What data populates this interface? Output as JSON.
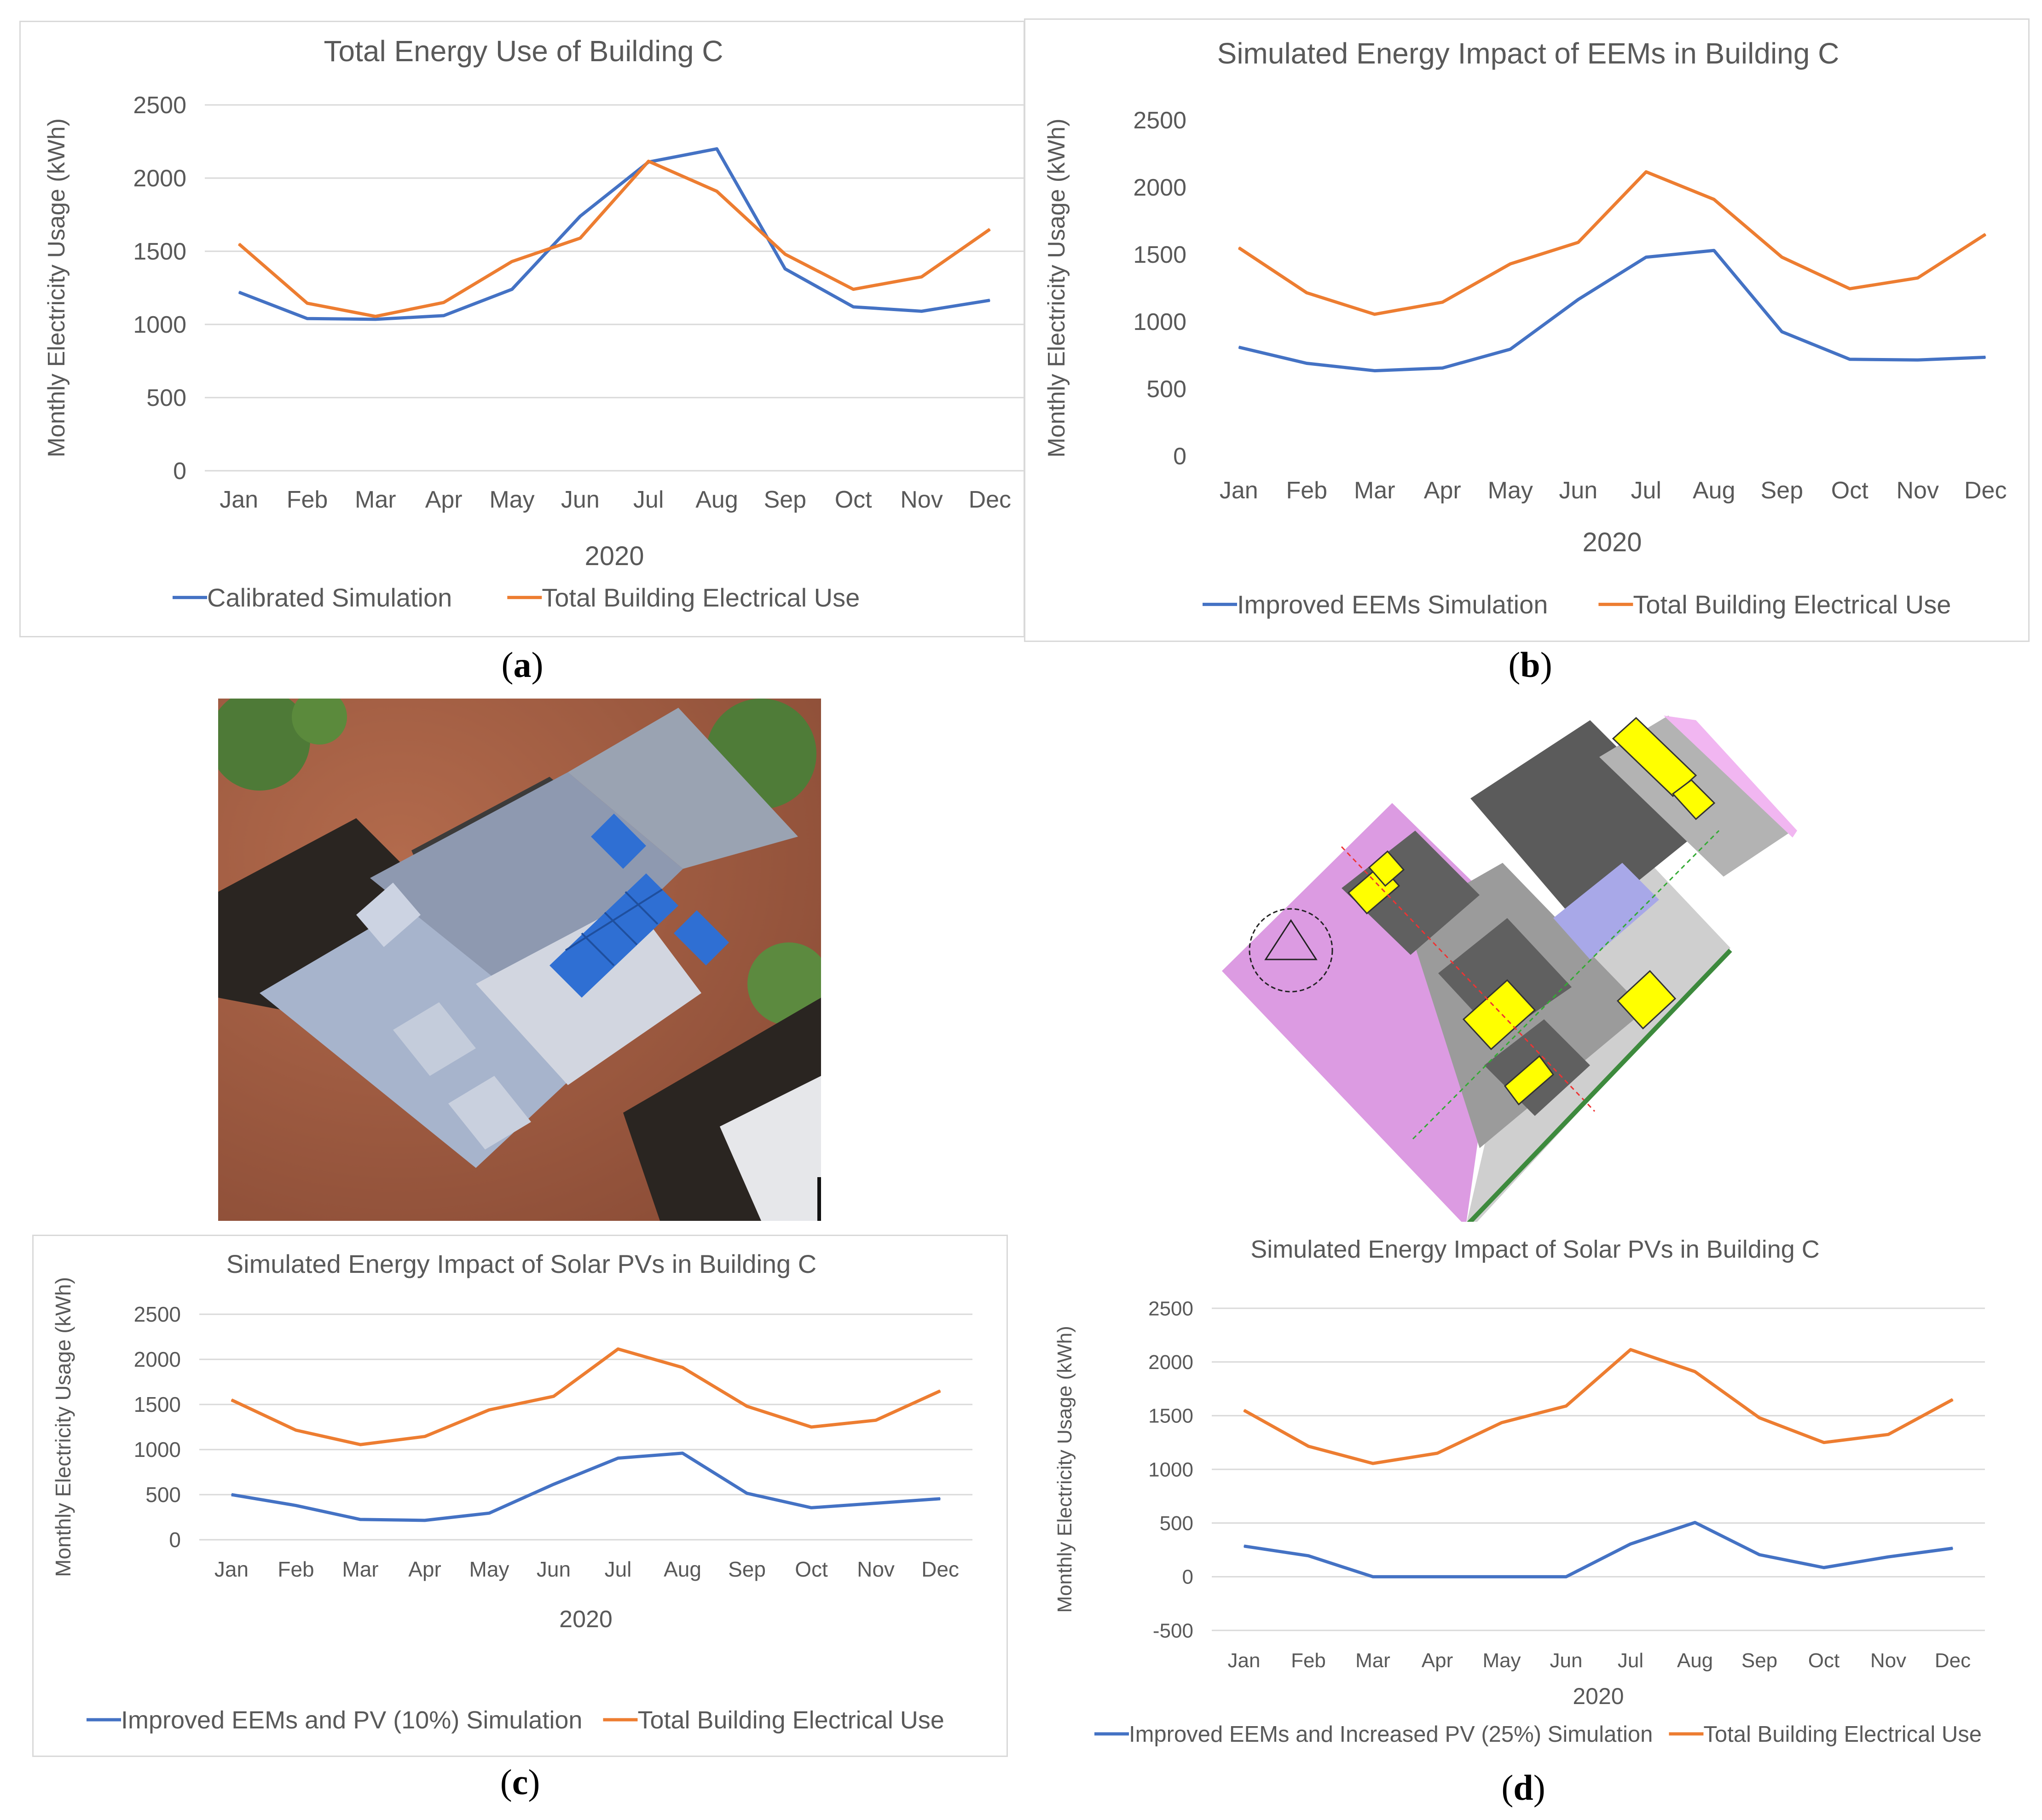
{
  "captions": {
    "a": "a",
    "b": "b",
    "c": "c",
    "d": "d"
  },
  "chart_data": [
    {
      "id": "a",
      "type": "line",
      "title": "Total Energy Use of Building C",
      "xlabel": "2020",
      "ylabel": "Monthly Electricity Usage (kWh)",
      "categories": [
        "Jan",
        "Feb",
        "Mar",
        "Apr",
        "May",
        "Jun",
        "Jul",
        "Aug",
        "Sep",
        "Oct",
        "Nov",
        "Dec"
      ],
      "yticks": [
        0,
        500,
        1000,
        1500,
        2000,
        2500
      ],
      "ylim": [
        0,
        2500
      ],
      "grid": true,
      "legend_position": "bottom",
      "series": [
        {
          "name": "Calibrated Simulation",
          "color": "#4472c4",
          "values": [
            1220,
            1040,
            1035,
            1060,
            1240,
            1740,
            2110,
            2200,
            1380,
            1120,
            1090,
            1165
          ]
        },
        {
          "name": "Total Building Electrical Use",
          "color": "#ed7d31",
          "values": [
            1550,
            1145,
            1055,
            1150,
            1430,
            1590,
            2115,
            1910,
            1480,
            1240,
            1325,
            1650
          ]
        }
      ]
    },
    {
      "id": "b",
      "type": "line",
      "title": "Simulated Energy Impact of EEMs in Building C",
      "xlabel": "2020",
      "ylabel": "Monthly Electricity Usage (kWh)",
      "categories": [
        "Jan",
        "Feb",
        "Mar",
        "Apr",
        "May",
        "Jun",
        "Jul",
        "Aug",
        "Sep",
        "Oct",
        "Nov",
        "Dec"
      ],
      "yticks": [
        0,
        500,
        1000,
        1500,
        2000,
        2500
      ],
      "ylim": [
        0,
        2500
      ],
      "grid": false,
      "legend_position": "bottom",
      "series": [
        {
          "name": "Improved EEMs Simulation",
          "color": "#4472c4",
          "values": [
            810,
            690,
            635,
            655,
            795,
            1165,
            1480,
            1530,
            925,
            720,
            715,
            735
          ]
        },
        {
          "name": "Total Building Electrical Use",
          "color": "#ed7d31",
          "values": [
            1550,
            1215,
            1055,
            1145,
            1430,
            1590,
            2115,
            1910,
            1480,
            1245,
            1325,
            1650
          ]
        }
      ]
    },
    {
      "id": "c",
      "type": "line",
      "title": "Simulated Energy Impact of Solar PVs in Building C",
      "xlabel": "2020",
      "ylabel": "Monthly Electricity Usage (kWh)",
      "categories": [
        "Jan",
        "Feb",
        "Mar",
        "Apr",
        "May",
        "Jun",
        "Jul",
        "Aug",
        "Sep",
        "Oct",
        "Nov",
        "Dec"
      ],
      "yticks": [
        0,
        500,
        1000,
        1500,
        2000,
        2500
      ],
      "ylim": [
        0,
        2500
      ],
      "grid": true,
      "legend_position": "bottom",
      "series": [
        {
          "name": "Improved EEMs and PV (10%) Simulation",
          "color": "#4472c4",
          "values": [
            500,
            380,
            225,
            215,
            295,
            615,
            905,
            960,
            515,
            355,
            405,
            455
          ]
        },
        {
          "name": "Total Building Electrical Use",
          "color": "#ed7d31",
          "values": [
            1550,
            1215,
            1055,
            1145,
            1440,
            1590,
            2115,
            1910,
            1480,
            1250,
            1325,
            1650
          ]
        }
      ]
    },
    {
      "id": "d",
      "type": "line",
      "title": "Simulated Energy Impact of Solar PVs in Building C",
      "xlabel": "2020",
      "ylabel": "Monthly Electricity Usage (kWh)",
      "categories": [
        "Jan",
        "Feb",
        "Mar",
        "Apr",
        "May",
        "Jun",
        "Jul",
        "Aug",
        "Sep",
        "Oct",
        "Nov",
        "Dec"
      ],
      "yticks": [
        -500,
        0,
        500,
        1000,
        1500,
        2000,
        2500
      ],
      "ylim": [
        -500,
        2500
      ],
      "grid": true,
      "legend_position": "bottom",
      "series": [
        {
          "name": "Improved EEMs and Increased PV (25%) Simulation",
          "color": "#4472c4",
          "values": [
            285,
            195,
            0,
            0,
            0,
            0,
            305,
            505,
            205,
            85,
            185,
            265
          ]
        },
        {
          "name": "Total Building Electrical Use",
          "color": "#ed7d31",
          "values": [
            1550,
            1215,
            1055,
            1150,
            1435,
            1590,
            2115,
            1910,
            1480,
            1250,
            1325,
            1650
          ]
        }
      ]
    }
  ]
}
